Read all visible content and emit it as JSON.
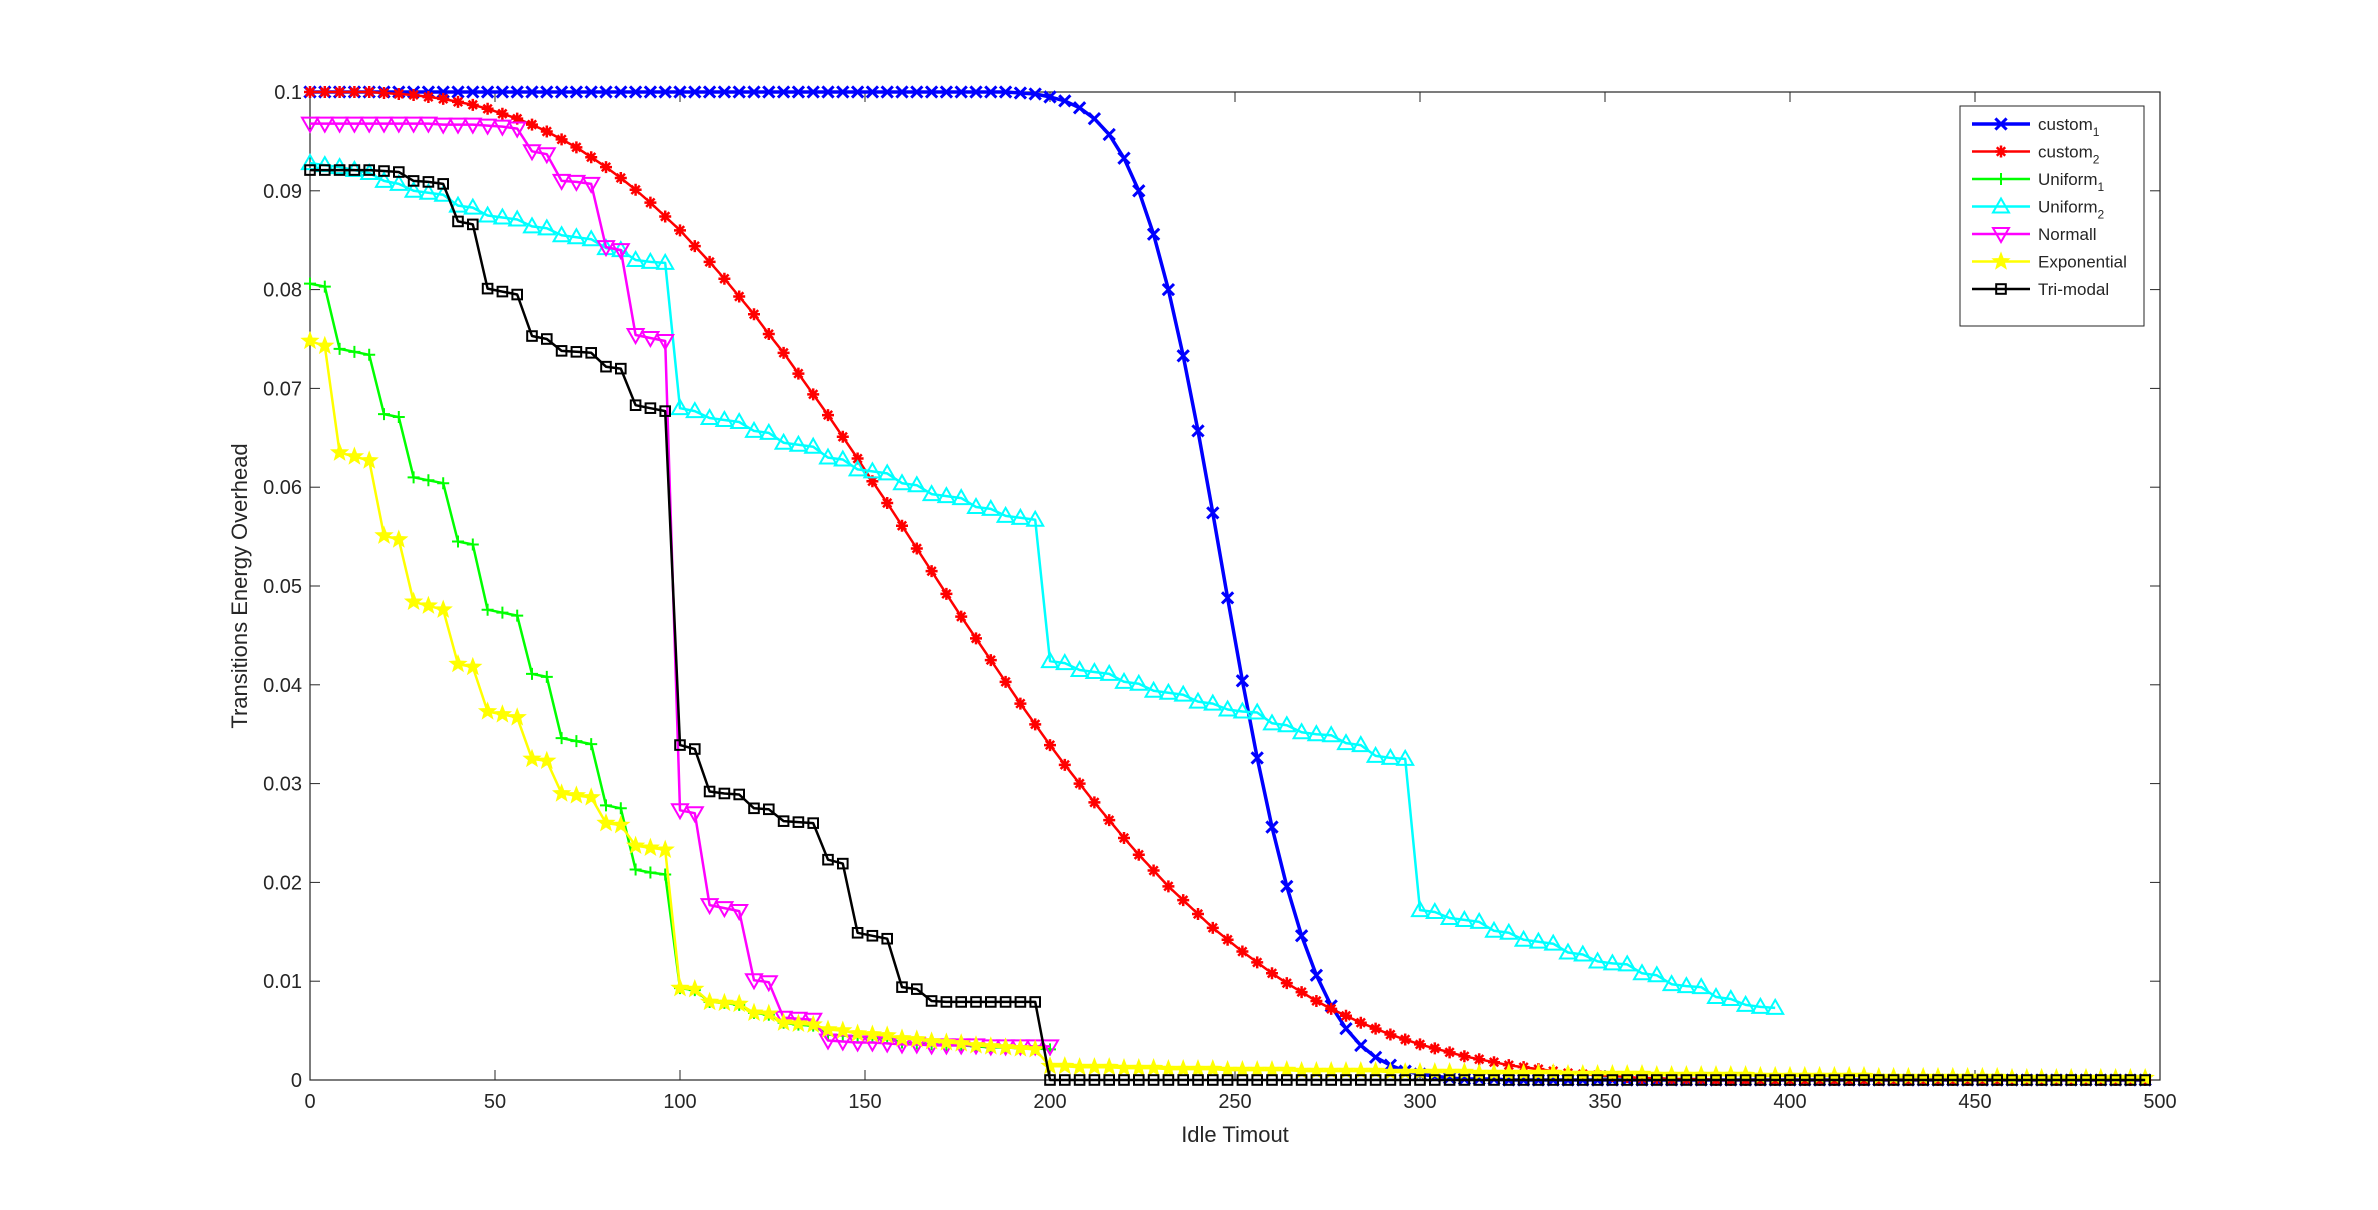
{
  "chart_data": {
    "type": "line",
    "title": "",
    "xlabel": "Idle Timout",
    "ylabel": "Transitions Energy Overhead",
    "xlim": [
      0,
      500
    ],
    "ylim": [
      0,
      0.1
    ],
    "xticks": [
      "0",
      "50",
      "100",
      "150",
      "200",
      "250",
      "300",
      "350",
      "400",
      "450",
      "500"
    ],
    "yticks": [
      "0",
      "0.01",
      "0.02",
      "0.03",
      "0.04",
      "0.05",
      "0.06",
      "0.07",
      "0.08",
      "0.09",
      "0.1"
    ],
    "grid": false,
    "legend_position": "top-right",
    "x": [
      0,
      4,
      8,
      12,
      16,
      20,
      24,
      28,
      32,
      36,
      40,
      44,
      48,
      52,
      56,
      60,
      64,
      68,
      72,
      76,
      80,
      84,
      88,
      92,
      96,
      100,
      104,
      108,
      112,
      116,
      120,
      124,
      128,
      132,
      136,
      140,
      144,
      148,
      152,
      156,
      160,
      164,
      168,
      172,
      176,
      180,
      184,
      188,
      192,
      196,
      200,
      204,
      208,
      212,
      216,
      220,
      224,
      228,
      232,
      236,
      240,
      244,
      248,
      252,
      256,
      260,
      264,
      268,
      272,
      276,
      280,
      284,
      288,
      292,
      296,
      300,
      304,
      308,
      312,
      316,
      320,
      324,
      328,
      332,
      336,
      340,
      344,
      348,
      352,
      356,
      360,
      364,
      368,
      372,
      376,
      380,
      384,
      388,
      392,
      396,
      400,
      404,
      408,
      412,
      416,
      420,
      424,
      428,
      432,
      436,
      440,
      444,
      448,
      452,
      456,
      460,
      464,
      468,
      472,
      476,
      480,
      484,
      488,
      492,
      496
    ],
    "series": [
      {
        "name": "custom",
        "name_sub": "1",
        "color": "#0000ff",
        "marker": "x",
        "values": [
          0.1,
          0.1,
          0.1,
          0.1,
          0.1,
          0.1,
          0.1,
          0.1,
          0.1,
          0.1,
          0.1,
          0.1,
          0.1,
          0.1,
          0.1,
          0.1,
          0.1,
          0.1,
          0.1,
          0.1,
          0.1,
          0.1,
          0.1,
          0.1,
          0.1,
          0.1,
          0.1,
          0.1,
          0.1,
          0.1,
          0.1,
          0.1,
          0.1,
          0.1,
          0.1,
          0.1,
          0.1,
          0.1,
          0.1,
          0.1,
          0.1,
          0.1,
          0.1,
          0.1,
          0.1,
          0.1,
          0.1,
          0.1,
          0.0999,
          0.0998,
          0.0995,
          0.0991,
          0.0984,
          0.0973,
          0.0957,
          0.0933,
          0.09,
          0.0856,
          0.08,
          0.0733,
          0.0657,
          0.0574,
          0.0488,
          0.0404,
          0.0326,
          0.0256,
          0.0196,
          0.0146,
          0.0106,
          0.0075,
          0.0052,
          0.0035,
          0.0023,
          0.0015,
          0.0009,
          0.0006,
          0.0004,
          0.0002,
          0.0001,
          0.0001,
          0.0001,
          0,
          0,
          0,
          0,
          0,
          0,
          0,
          0,
          0,
          0,
          0,
          0,
          0,
          0,
          0,
          0,
          0,
          0,
          0,
          0,
          0,
          0,
          0,
          0,
          0,
          0,
          0,
          0,
          0,
          0,
          0,
          0,
          0,
          0,
          0,
          0,
          0,
          0,
          0,
          0,
          0,
          0,
          0,
          0
        ]
      },
      {
        "name": "custom",
        "name_sub": "2",
        "color": "#ff0000",
        "marker": "asterisk",
        "values": [
          0.1,
          0.1,
          0.1,
          0.1,
          0.1,
          0.0999,
          0.0998,
          0.0997,
          0.0995,
          0.0993,
          0.099,
          0.0987,
          0.0983,
          0.0978,
          0.0973,
          0.0967,
          0.096,
          0.0952,
          0.0944,
          0.0934,
          0.0924,
          0.0913,
          0.0901,
          0.0888,
          0.0874,
          0.086,
          0.0844,
          0.0828,
          0.0811,
          0.0793,
          0.0775,
          0.0755,
          0.0736,
          0.0715,
          0.0694,
          0.0673,
          0.0651,
          0.0629,
          0.0606,
          0.0584,
          0.0561,
          0.0538,
          0.0515,
          0.0492,
          0.0469,
          0.0447,
          0.0425,
          0.0403,
          0.0381,
          0.036,
          0.0339,
          0.0319,
          0.03,
          0.0281,
          0.0263,
          0.0245,
          0.0228,
          0.0212,
          0.0196,
          0.0182,
          0.0168,
          0.0154,
          0.0142,
          0.013,
          0.0119,
          0.0108,
          0.0098,
          0.0089,
          0.008,
          0.0072,
          0.0065,
          0.0058,
          0.0052,
          0.0046,
          0.0041,
          0.0036,
          0.0032,
          0.0028,
          0.0024,
          0.0021,
          0.0018,
          0.0015,
          0.0013,
          0.0011,
          0.0009,
          0.0007,
          0.0006,
          0.0005,
          0.0004,
          0.0003,
          0.0002,
          0.0002,
          0.0001,
          0.0001,
          0.0001,
          0,
          0,
          0,
          0,
          0,
          0,
          0,
          0,
          0,
          0,
          0,
          0,
          0,
          0,
          0,
          0,
          0,
          0,
          0,
          0,
          0,
          0,
          0,
          0,
          0,
          0,
          0,
          0,
          0,
          0
        ]
      },
      {
        "name": "Uniform",
        "name_sub": "1",
        "color": "#00ff00",
        "marker": "plus",
        "x": [
          0,
          4,
          8,
          12,
          16,
          20,
          24,
          28,
          32,
          36,
          40,
          44,
          48,
          52,
          56,
          60,
          64,
          68,
          72,
          76,
          80,
          84,
          88,
          92,
          96,
          100,
          104,
          108,
          112,
          116,
          120,
          124,
          128,
          132,
          136,
          140,
          144,
          148,
          152,
          156,
          160,
          164,
          168,
          172,
          176,
          180,
          184,
          188,
          192,
          196,
          200
        ],
        "values": [
          0.0806,
          0.0803,
          0.074,
          0.0737,
          0.0734,
          0.0674,
          0.0671,
          0.061,
          0.0607,
          0.0604,
          0.0545,
          0.0542,
          0.0476,
          0.0473,
          0.047,
          0.0411,
          0.0408,
          0.0346,
          0.0343,
          0.034,
          0.0278,
          0.0275,
          0.0213,
          0.021,
          0.0208,
          0.0093,
          0.0091,
          0.0079,
          0.0078,
          0.0076,
          0.0068,
          0.0066,
          0.0058,
          0.0056,
          0.0055,
          0.0046,
          0.0045,
          0.0044,
          0.0043,
          0.0042,
          0.0038,
          0.0037,
          0.0036,
          0.0035,
          0.0035,
          0.0034,
          0.0033,
          0.0033,
          0.0032,
          0.0032,
          0.0031
        ]
      },
      {
        "name": "Uniform",
        "name_sub": "2",
        "color": "#00ffff",
        "marker": "triangle-up",
        "x": [
          0,
          4,
          8,
          12,
          16,
          20,
          24,
          28,
          32,
          36,
          40,
          44,
          48,
          52,
          56,
          60,
          64,
          68,
          72,
          76,
          80,
          84,
          88,
          92,
          96,
          100,
          104,
          108,
          112,
          116,
          120,
          124,
          128,
          132,
          136,
          140,
          144,
          148,
          152,
          156,
          160,
          164,
          168,
          172,
          176,
          180,
          184,
          188,
          192,
          196,
          200,
          204,
          208,
          212,
          216,
          220,
          224,
          228,
          232,
          236,
          240,
          244,
          248,
          252,
          256,
          260,
          264,
          268,
          272,
          276,
          280,
          284,
          288,
          292,
          296,
          300,
          304,
          308,
          312,
          316,
          320,
          324,
          328,
          332,
          336,
          340,
          344,
          348,
          352,
          356,
          360,
          364,
          368,
          372,
          376,
          380,
          384,
          388,
          392,
          396
        ],
        "values": [
          0.0928,
          0.0926,
          0.0924,
          0.0921,
          0.0918,
          0.091,
          0.0907,
          0.09,
          0.0898,
          0.0896,
          0.0885,
          0.0883,
          0.0875,
          0.0873,
          0.0871,
          0.0864,
          0.0862,
          0.0855,
          0.0853,
          0.0851,
          0.0842,
          0.084,
          0.083,
          0.0828,
          0.0827,
          0.068,
          0.0677,
          0.067,
          0.0668,
          0.0666,
          0.0657,
          0.0655,
          0.0645,
          0.0643,
          0.0641,
          0.063,
          0.0628,
          0.0618,
          0.0616,
          0.0614,
          0.0604,
          0.0602,
          0.0593,
          0.0591,
          0.0589,
          0.058,
          0.0578,
          0.0571,
          0.0569,
          0.0567,
          0.0424,
          0.0422,
          0.0415,
          0.0413,
          0.0411,
          0.0403,
          0.0401,
          0.0394,
          0.0392,
          0.039,
          0.0383,
          0.0381,
          0.0375,
          0.0373,
          0.0372,
          0.0361,
          0.0359,
          0.0352,
          0.035,
          0.0349,
          0.0341,
          0.0339,
          0.0328,
          0.0326,
          0.0325,
          0.0172,
          0.017,
          0.0164,
          0.0162,
          0.016,
          0.0151,
          0.0149,
          0.0142,
          0.014,
          0.0138,
          0.0129,
          0.0127,
          0.012,
          0.0118,
          0.0117,
          0.0108,
          0.0106,
          0.0097,
          0.0095,
          0.0094,
          0.0084,
          0.0082,
          0.0076,
          0.0074,
          0.0073
        ]
      },
      {
        "name": "Normall",
        "name_sub": "",
        "color": "#ff00ff",
        "marker": "triangle-down",
        "x": [
          0,
          4,
          8,
          12,
          16,
          20,
          24,
          28,
          32,
          36,
          40,
          44,
          48,
          52,
          56,
          60,
          64,
          68,
          72,
          76,
          80,
          84,
          88,
          92,
          96,
          100,
          104,
          108,
          112,
          116,
          120,
          124,
          128,
          132,
          136,
          140,
          144,
          148,
          152,
          156,
          160,
          164,
          168,
          172,
          176,
          180,
          184,
          188,
          192,
          196,
          200
        ],
        "values": [
          0.0968,
          0.0968,
          0.0968,
          0.0968,
          0.0968,
          0.0968,
          0.0968,
          0.0968,
          0.0968,
          0.0967,
          0.0967,
          0.0967,
          0.0966,
          0.0965,
          0.0963,
          0.094,
          0.0937,
          0.091,
          0.0909,
          0.0907,
          0.0843,
          0.084,
          0.0754,
          0.0751,
          0.0748,
          0.0273,
          0.027,
          0.0177,
          0.0174,
          0.0171,
          0.0101,
          0.0099,
          0.0063,
          0.0062,
          0.0061,
          0.004,
          0.0039,
          0.0038,
          0.0038,
          0.0037,
          0.0036,
          0.0036,
          0.0035,
          0.0035,
          0.0035,
          0.0035,
          0.0034,
          0.0034,
          0.0034,
          0.0034,
          0.0034
        ]
      },
      {
        "name": "Exponential",
        "name_sub": "",
        "color": "#ffff00",
        "marker": "pentagram",
        "values": [
          0.0748,
          0.0743,
          0.0635,
          0.0631,
          0.0627,
          0.0551,
          0.0547,
          0.0484,
          0.048,
          0.0476,
          0.0421,
          0.0418,
          0.0373,
          0.037,
          0.0367,
          0.0325,
          0.0323,
          0.029,
          0.0288,
          0.0286,
          0.026,
          0.0258,
          0.0237,
          0.0235,
          0.0233,
          0.0093,
          0.0092,
          0.0079,
          0.0078,
          0.0077,
          0.0068,
          0.0067,
          0.0058,
          0.0057,
          0.0056,
          0.0051,
          0.005,
          0.0047,
          0.0046,
          0.0045,
          0.0042,
          0.0041,
          0.0039,
          0.0038,
          0.0037,
          0.0035,
          0.0034,
          0.0033,
          0.0032,
          0.0031,
          0.0014,
          0.0014,
          0.0013,
          0.0013,
          0.0013,
          0.0012,
          0.0012,
          0.0012,
          0.0011,
          0.0011,
          0.0011,
          0.0011,
          0.001,
          0.001,
          0.001,
          0.001,
          0.001,
          0.0009,
          0.0009,
          0.0009,
          0.0009,
          0.0009,
          0.0009,
          0.0008,
          0.0008,
          0.0008,
          0.0008,
          0.0008,
          0.0008,
          0.0007,
          0.0007,
          0.0007,
          0.0007,
          0.0007,
          0.0007,
          0.0006,
          0.0006,
          0.0006,
          0.0006,
          0.0006,
          0.0006,
          0.0005,
          0.0005,
          0.0005,
          0.0005,
          0.0005,
          0.0005,
          0.0005,
          0.0004,
          0.0004,
          0.0004,
          0.0004,
          0.0004,
          0.0004,
          0.0004,
          0.0004,
          0.0003,
          0.0003,
          0.0003,
          0.0003,
          0.0003,
          0.0003,
          0.0003,
          0.0003,
          0.0003,
          0.0002,
          0.0002,
          0.0002,
          0.0002,
          0.0002,
          0.0002,
          0.0002,
          0.0002,
          0.0002,
          0.0002
        ]
      },
      {
        "name": "Tri-modal",
        "name_sub": "",
        "color": "#000000",
        "marker": "square",
        "values": [
          0.0921,
          0.0921,
          0.0921,
          0.0921,
          0.0921,
          0.092,
          0.0919,
          0.091,
          0.0909,
          0.0907,
          0.0869,
          0.0866,
          0.0801,
          0.0798,
          0.0795,
          0.0753,
          0.075,
          0.0738,
          0.0737,
          0.0736,
          0.0722,
          0.072,
          0.0683,
          0.068,
          0.0677,
          0.0339,
          0.0335,
          0.0292,
          0.029,
          0.0289,
          0.0275,
          0.0274,
          0.0262,
          0.0261,
          0.026,
          0.0223,
          0.0219,
          0.0149,
          0.0146,
          0.0143,
          0.0094,
          0.0092,
          0.008,
          0.0079,
          0.0079,
          0.0079,
          0.0079,
          0.0079,
          0.0079,
          0.0079,
          0,
          0,
          0,
          0,
          0,
          0,
          0,
          0,
          0,
          0,
          0,
          0,
          0,
          0,
          0,
          0,
          0,
          0,
          0,
          0,
          0,
          0,
          0,
          0,
          0,
          0,
          0,
          0,
          0,
          0,
          0,
          0,
          0,
          0,
          0,
          0,
          0,
          0,
          0,
          0,
          0,
          0,
          0,
          0,
          0,
          0,
          0,
          0,
          0,
          0,
          0,
          0,
          0,
          0,
          0,
          0,
          0,
          0,
          0,
          0,
          0,
          0,
          0,
          0,
          0,
          0,
          0,
          0,
          0,
          0,
          0,
          0,
          0,
          0,
          0
        ]
      }
    ]
  }
}
